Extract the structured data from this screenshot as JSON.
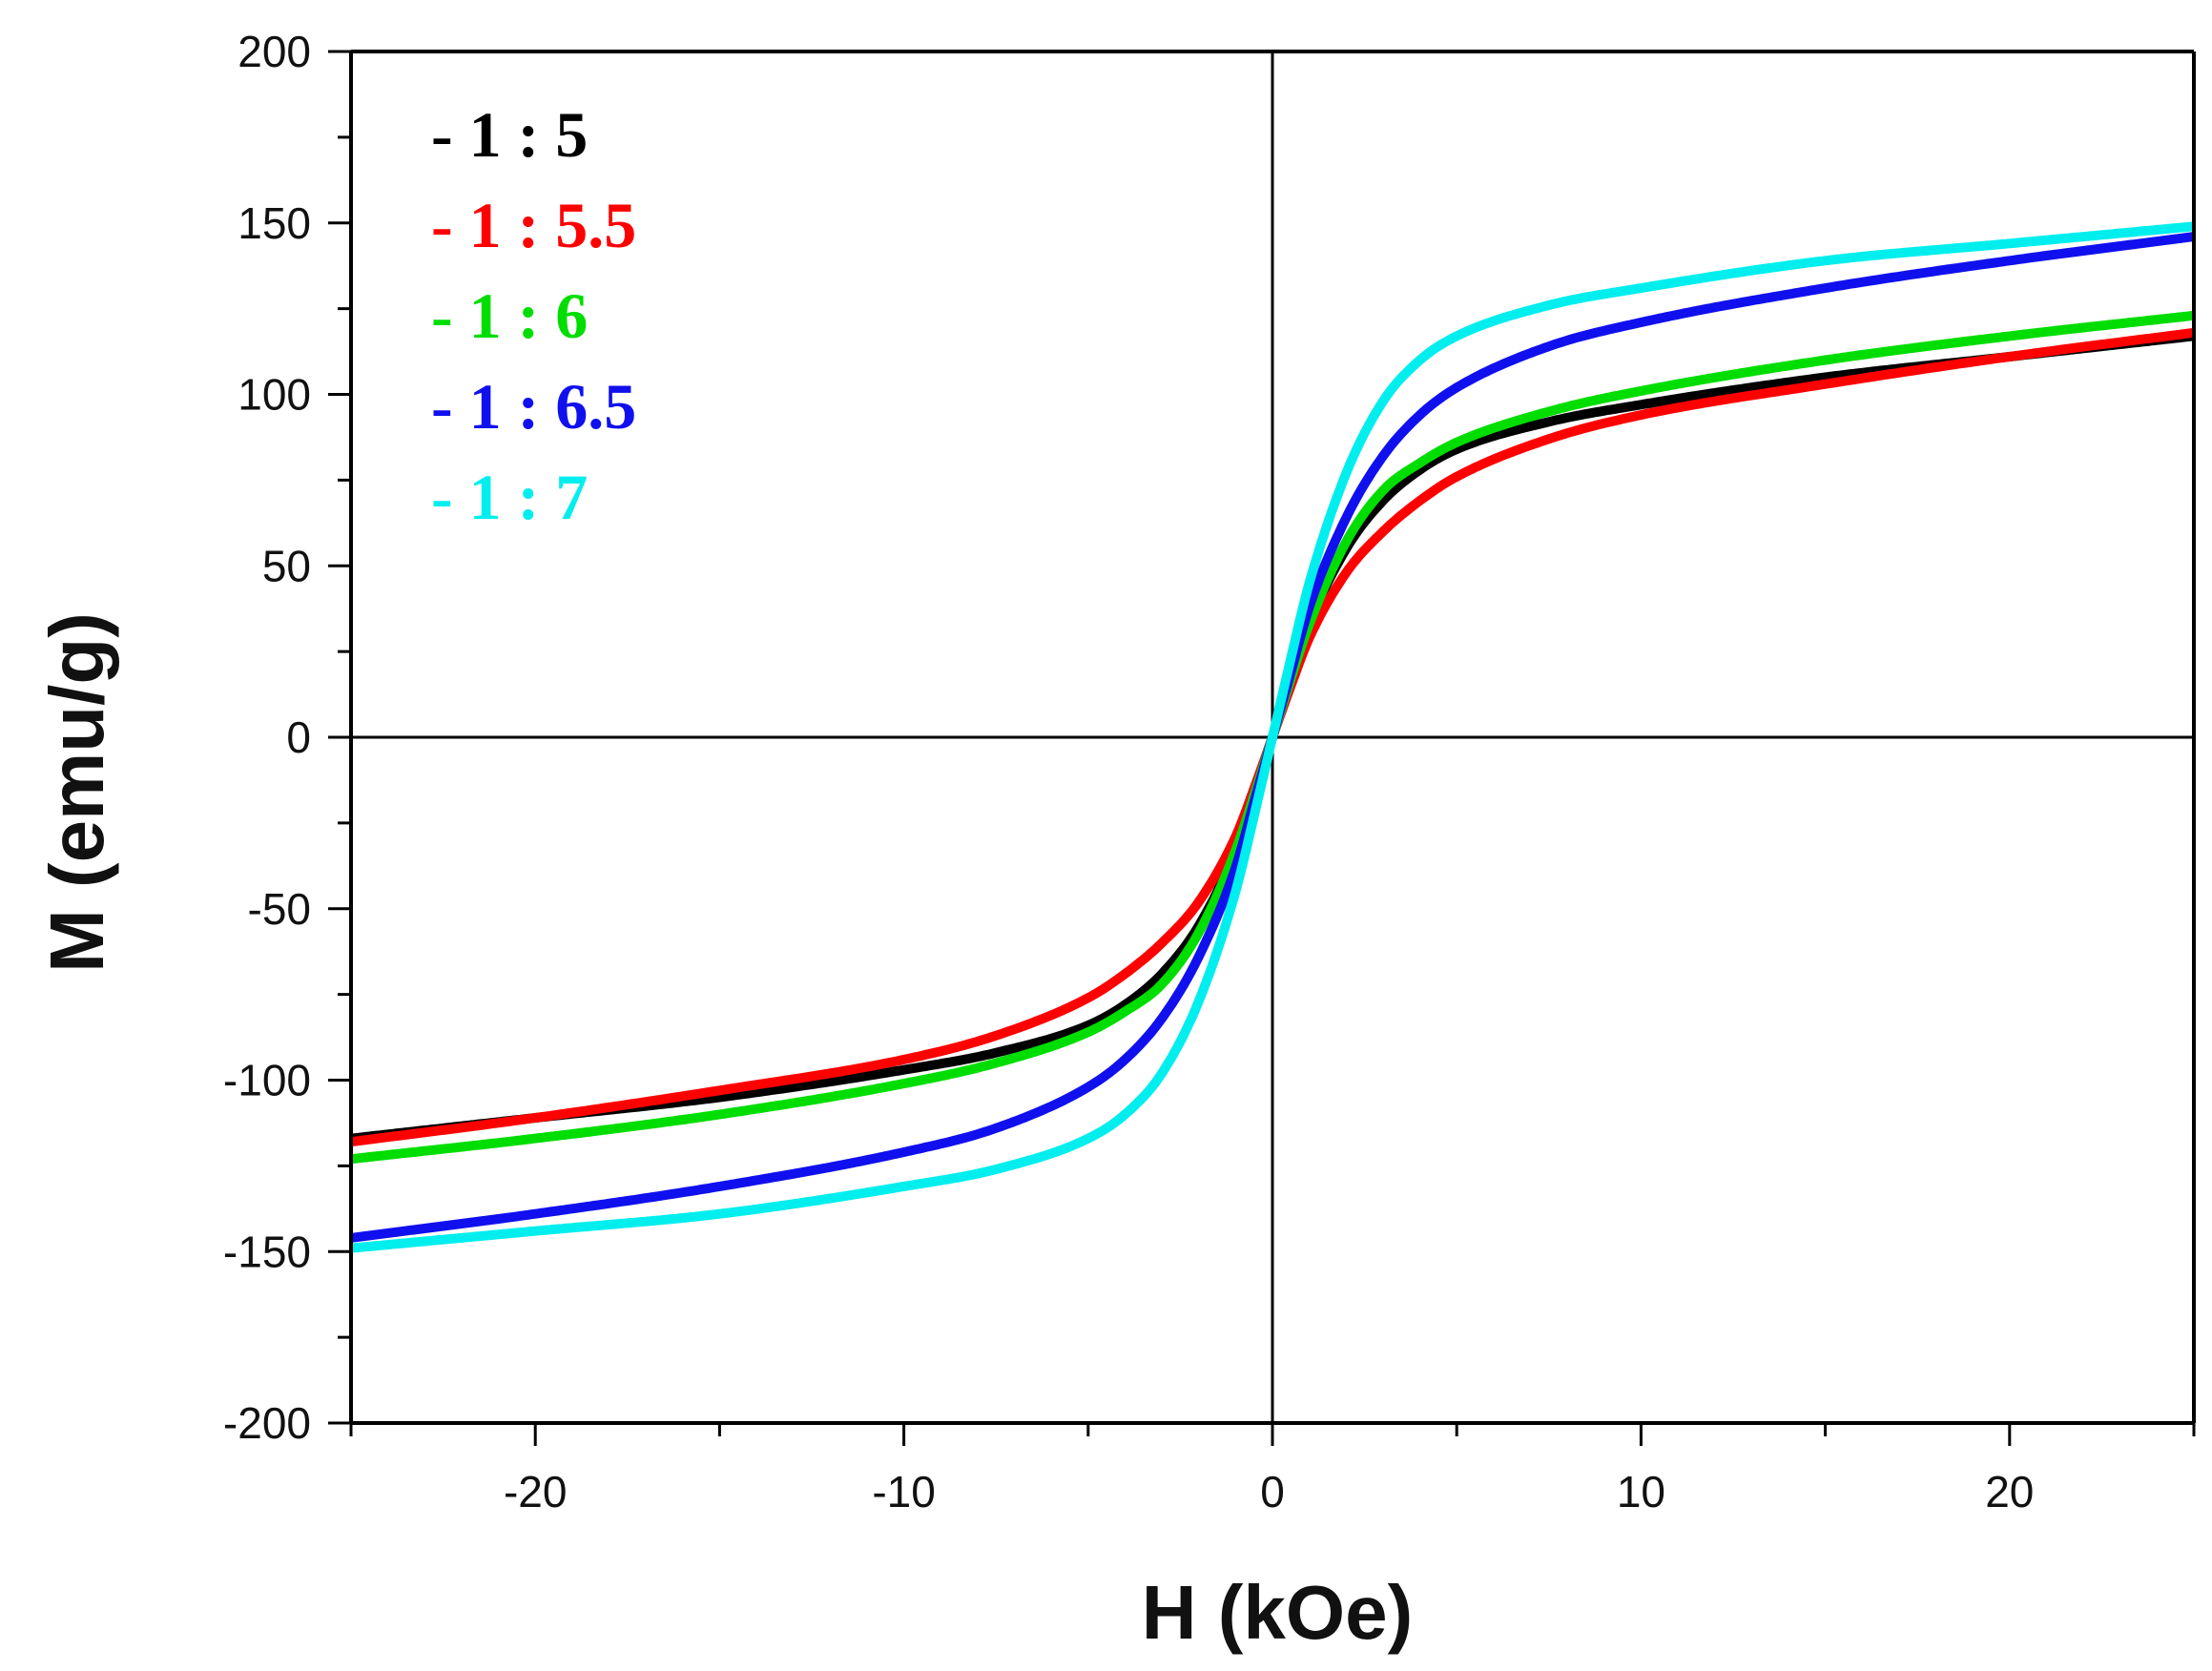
{
  "chart_data": {
    "type": "line",
    "title": "",
    "xlabel": "H (kOe)",
    "ylabel": "M (emu/g)",
    "xlim": [
      -25,
      25
    ],
    "ylim": [
      -200,
      200
    ],
    "x_ticks": [
      -20,
      -10,
      0,
      10,
      20
    ],
    "x_tick_labels": [
      "-20",
      "-10",
      "0",
      "10",
      "20"
    ],
    "y_ticks": [
      -200,
      -150,
      -100,
      -50,
      0,
      50,
      100,
      150,
      200
    ],
    "y_tick_labels": [
      "-200",
      "-150",
      "-100",
      "-50",
      "0",
      "50",
      "100",
      "150",
      "200"
    ],
    "zero_lines": true,
    "legend_position": "top-left",
    "x": [
      0,
      0.5,
      1,
      2,
      3,
      4,
      5,
      7.5,
      10,
      15,
      20,
      25
    ],
    "series": [
      {
        "name": "- 1 : 5",
        "color": "#000000",
        "values": [
          0,
          17,
          33,
          55,
          69,
          78,
          84,
          92,
          97,
          105,
          111,
          117
        ]
      },
      {
        "name": "- 1 : 5.5",
        "color": "#ff0000",
        "values": [
          0,
          15,
          29,
          48,
          60,
          69,
          76,
          87,
          94,
          103,
          111,
          118
        ]
      },
      {
        "name": "- 1 : 6",
        "color": "#00dd00",
        "values": [
          0,
          17,
          33,
          57,
          72,
          80,
          86,
          95,
          101,
          110,
          117,
          123
        ]
      },
      {
        "name": "- 1 : 6.5",
        "color": "#1010ee",
        "values": [
          0,
          19,
          38,
          64,
          82,
          94,
          102,
          114,
          121,
          131,
          139,
          146
        ]
      },
      {
        "name": "- 1 : 7",
        "color": "#00eeee",
        "values": [
          0,
          23,
          45,
          77,
          98,
          110,
          117,
          126,
          131,
          139,
          144,
          149
        ]
      }
    ]
  }
}
